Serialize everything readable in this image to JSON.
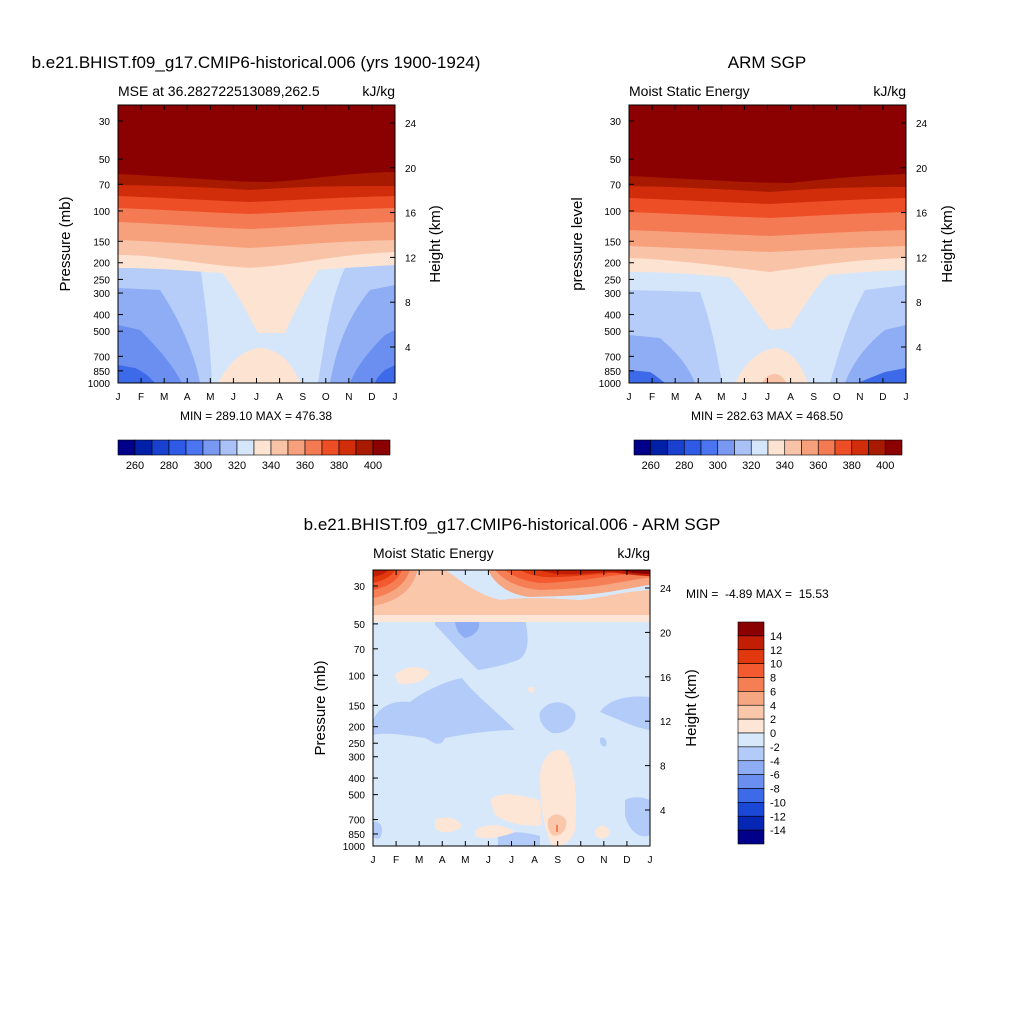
{
  "figure": {
    "months": [
      "J",
      "F",
      "M",
      "A",
      "M",
      "J",
      "J",
      "A",
      "S",
      "O",
      "N",
      "D",
      "J"
    ],
    "pressure_ticks": [
      30,
      50,
      70,
      100,
      150,
      200,
      250,
      300,
      400,
      500,
      700,
      850,
      1000
    ],
    "height_ticks": [
      4,
      8,
      12,
      16,
      20,
      24
    ]
  },
  "chart_data": [
    {
      "type": "heatmap",
      "title": "b.e21.BHIST.f09_g17.CMIP6-historical.006 (yrs 1900-1924)",
      "left_label": "MSE at 36.282722513089,262.5",
      "right_label": "kJ/kg",
      "ylabel": "Pressure (mb)",
      "ylabel_right": "Height (km)",
      "x": [
        "J",
        "F",
        "M",
        "A",
        "M",
        "J",
        "J",
        "A",
        "S",
        "O",
        "N",
        "D",
        "J"
      ],
      "y_pressure": [
        30,
        50,
        70,
        100,
        150,
        200,
        250,
        300,
        400,
        500,
        700,
        850,
        1000
      ],
      "y_height_km": [
        4,
        8,
        12,
        16,
        20,
        24
      ],
      "stats": "MIN = 289.10 MAX = 476.38",
      "colorbar": {
        "orientation": "horizontal",
        "levels": [
          250,
          260,
          270,
          280,
          290,
          300,
          310,
          320,
          330,
          340,
          350,
          360,
          370,
          380,
          390,
          400
        ],
        "tick_labels": [
          "260",
          "280",
          "300",
          "320",
          "340",
          "360",
          "380",
          "400"
        ],
        "colors": [
          "#00008b",
          "#0020a8",
          "#1a40cf",
          "#2e5ae6",
          "#4a74f0",
          "#7898f2",
          "#a9c1f7",
          "#d5e6fb",
          "#fde3d1",
          "#f9c3a7",
          "#f7a07c",
          "#f47a53",
          "#ee4e26",
          "#d22d0b",
          "#a81a00",
          "#8b0000"
        ]
      }
    },
    {
      "type": "heatmap",
      "title": "ARM SGP",
      "left_label": "Moist Static Energy",
      "right_label": "kJ/kg",
      "ylabel": "pressure level",
      "ylabel_right": "Height (km)",
      "x": [
        "J",
        "F",
        "M",
        "A",
        "M",
        "J",
        "J",
        "A",
        "S",
        "O",
        "N",
        "D",
        "J"
      ],
      "y_pressure": [
        30,
        50,
        70,
        100,
        150,
        200,
        250,
        300,
        400,
        500,
        700,
        850,
        1000
      ],
      "y_height_km": [
        4,
        8,
        12,
        16,
        20,
        24
      ],
      "stats": "MIN = 282.63 MAX = 468.50",
      "colorbar": {
        "orientation": "horizontal",
        "levels": [
          250,
          260,
          270,
          280,
          290,
          300,
          310,
          320,
          330,
          340,
          350,
          360,
          370,
          380,
          390,
          400
        ],
        "tick_labels": [
          "260",
          "280",
          "300",
          "320",
          "340",
          "360",
          "380",
          "400"
        ],
        "colors": [
          "#00008b",
          "#0020a8",
          "#1a40cf",
          "#2e5ae6",
          "#4a74f0",
          "#7898f2",
          "#a9c1f7",
          "#d5e6fb",
          "#fde3d1",
          "#f9c3a7",
          "#f7a07c",
          "#f47a53",
          "#ee4e26",
          "#d22d0b",
          "#a81a00",
          "#8b0000"
        ]
      }
    },
    {
      "type": "heatmap",
      "title": "b.e21.BHIST.f09_g17.CMIP6-historical.006 - ARM SGP",
      "left_label": "Moist Static Energy",
      "right_label": "kJ/kg",
      "ylabel": "Pressure (mb)",
      "ylabel_right": "Height (km)",
      "x": [
        "J",
        "F",
        "M",
        "A",
        "M",
        "J",
        "J",
        "A",
        "S",
        "O",
        "N",
        "D",
        "J"
      ],
      "y_pressure": [
        30,
        50,
        70,
        100,
        150,
        200,
        250,
        300,
        400,
        500,
        700,
        850,
        1000
      ],
      "y_height_km": [
        4,
        8,
        12,
        16,
        20,
        24
      ],
      "stats": "MIN =  -4.89 MAX =  15.53",
      "colorbar": {
        "orientation": "vertical",
        "tick_labels": [
          "14",
          "12",
          "10",
          "8",
          "6",
          "4",
          "2",
          "0",
          "-2",
          "-4",
          "-6",
          "-8",
          "-10",
          "-12",
          "-14"
        ],
        "colors": [
          "#8b0000",
          "#c21e05",
          "#e2380e",
          "#f45a2f",
          "#f57e55",
          "#f7a682",
          "#fac7ab",
          "#fde6d6",
          "#d7e8fb",
          "#b3cbf8",
          "#8eadf4",
          "#6a8ff0",
          "#3d6ae8",
          "#1b47d6",
          "#0627b3",
          "#00008b"
        ]
      }
    }
  ]
}
